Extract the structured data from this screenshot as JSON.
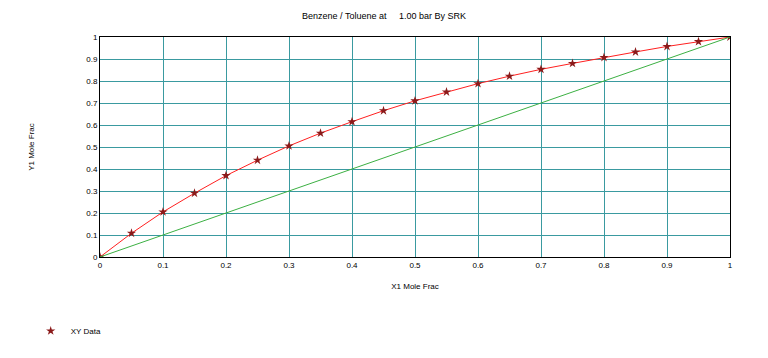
{
  "chart_data": {
    "type": "line",
    "title": "Benzene / Toluene at     1.00 bar By SRK",
    "x_label": "X1 Mole Frac",
    "y_label": "Y1 Mole Frac",
    "xlim": [
      0,
      1
    ],
    "ylim": [
      0,
      1
    ],
    "xticks": [
      0,
      0.1,
      0.2,
      0.3,
      0.4,
      0.5,
      0.6,
      0.7,
      0.8,
      0.9,
      1
    ],
    "yticks": [
      0,
      0.1,
      0.2,
      0.3,
      0.4,
      0.5,
      0.6,
      0.7,
      0.8,
      0.9,
      1
    ],
    "grid": true,
    "legend": "bottom left",
    "series": [
      {
        "name": "XY Data",
        "color": "#8b1a1a",
        "marker": "star",
        "line_style": "solid",
        "x": [
          0,
          0.05,
          0.1,
          0.15,
          0.2,
          0.25,
          0.3,
          0.35,
          0.4,
          0.45,
          0.5,
          0.55,
          0.6,
          0.65,
          0.7,
          0.75,
          0.8,
          0.85,
          0.9,
          0.95,
          1
        ],
        "values": [
          0,
          0.108,
          0.205,
          0.29,
          0.37,
          0.44,
          0.505,
          0.563,
          0.615,
          0.665,
          0.71,
          0.75,
          0.788,
          0.822,
          0.853,
          0.88,
          0.907,
          0.932,
          0.957,
          0.979,
          1
        ]
      },
      {
        "color": "#3cb043",
        "line_style": "solid",
        "x": [
          0,
          1
        ],
        "values": [
          0,
          1
        ]
      }
    ]
  }
}
